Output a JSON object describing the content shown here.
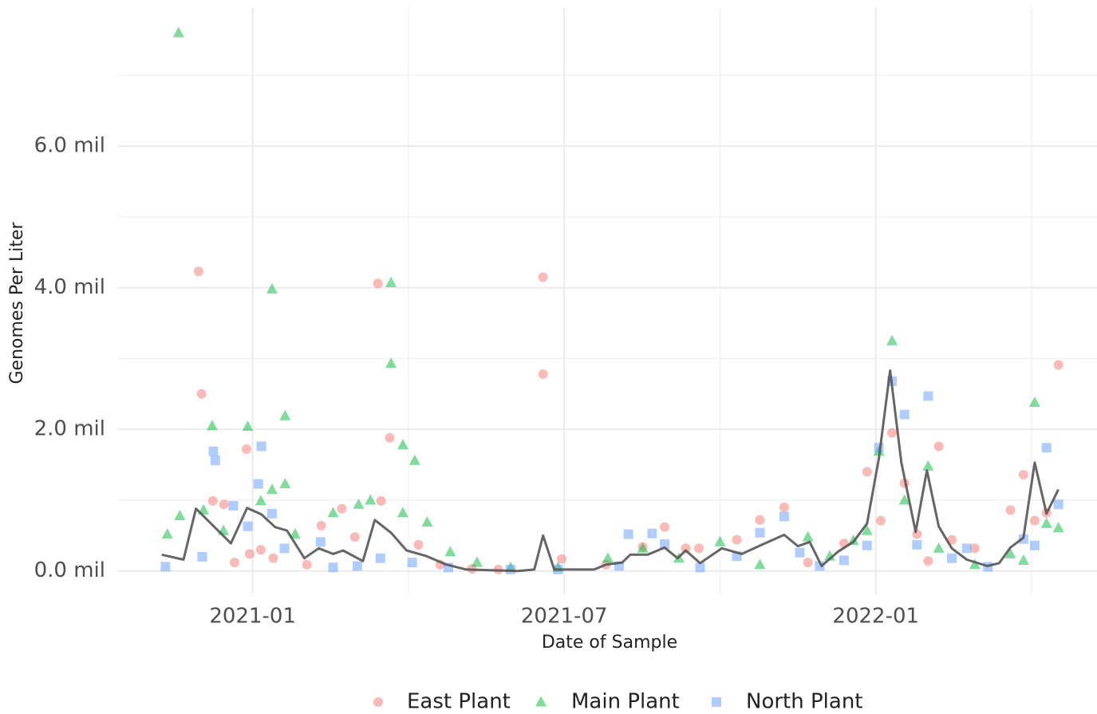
{
  "chart_data": {
    "type": "scatter",
    "x_label": "Date of Sample",
    "y_label": "Genomes Per Liter",
    "xlim": [
      2020.784,
      2022.355
    ],
    "xticks": [
      {
        "value": 2021,
        "label": "2021-01"
      },
      {
        "value": 2021.5,
        "label": "2021-07"
      },
      {
        "value": 2022,
        "label": "2022-01"
      }
    ],
    "x_minor_ticks": [
      2021.25,
      2021.75,
      2022.25
    ],
    "ylim": [
      -330000,
      7950000
    ],
    "yticks": [
      {
        "value": 0,
        "label": "0.0 mil"
      },
      {
        "value": 2000000,
        "label": "2.0 mil"
      },
      {
        "value": 4000000,
        "label": "4.0 mil"
      },
      {
        "value": 6000000,
        "label": "6.0 mil"
      }
    ],
    "y_minor_ticks": [
      1000000,
      3000000,
      5000000,
      7000000
    ],
    "grid": true,
    "legend": "bottom",
    "series": [
      {
        "name": "East Plant",
        "marker": "circle",
        "color": "#f8766d",
        "x": [
          2020.913,
          2020.918,
          2020.936,
          2020.954,
          2020.971,
          2020.99,
          2020.995,
          2021.013,
          2021.033,
          2021.087,
          2021.11,
          2021.143,
          2021.164,
          2021.201,
          2021.206,
          2021.22,
          2021.266,
          2021.301,
          2021.352,
          2021.394,
          2021.466,
          2021.466,
          2021.496,
          2021.567,
          2021.626,
          2021.661,
          2021.695,
          2021.716,
          2021.777,
          2021.814,
          2021.853,
          2021.891,
          2021.949,
          2021.986,
          2022.008,
          2022.026,
          2022.046,
          2022.066,
          2022.084,
          2022.101,
          2022.122,
          2022.159,
          2022.216,
          2022.237,
          2022.255,
          2022.274,
          2022.293
        ],
        "values": [
          4230000,
          2500000,
          990000,
          940000,
          120000,
          1720000,
          240000,
          300000,
          180000,
          90000,
          640000,
          880000,
          480000,
          4060000,
          990000,
          1880000,
          370000,
          90000,
          30000,
          20000,
          4150000,
          2780000,
          170000,
          90000,
          340000,
          620000,
          320000,
          320000,
          440000,
          720000,
          900000,
          120000,
          390000,
          1400000,
          710000,
          1950000,
          1240000,
          520000,
          140000,
          1760000,
          440000,
          320000,
          860000,
          1360000,
          710000,
          820000,
          2910000
        ]
      },
      {
        "name": "Main Plant",
        "marker": "triangle",
        "color": "#00ba38",
        "x": [
          2020.881,
          2020.863,
          2020.883,
          2020.921,
          2020.935,
          2020.953,
          2020.992,
          2021.013,
          2021.031,
          2021.031,
          2021.052,
          2021.052,
          2021.068,
          2021.129,
          2021.17,
          2021.189,
          2021.222,
          2021.222,
          2021.241,
          2021.26,
          2021.241,
          2021.28,
          2021.317,
          2021.36,
          2021.414,
          2021.49,
          2021.57,
          2021.626,
          2021.684,
          2021.75,
          2021.814,
          2021.891,
          2021.926,
          2021.964,
          2021.986,
          2022.005,
          2022.026,
          2022.046,
          2022.084,
          2022.101,
          2022.159,
          2022.216,
          2022.237,
          2022.255,
          2022.274,
          2022.293
        ],
        "values": [
          7600000,
          520000,
          780000,
          860000,
          2050000,
          570000,
          2040000,
          990000,
          3980000,
          1150000,
          2190000,
          1230000,
          520000,
          820000,
          940000,
          1000000,
          4070000,
          2930000,
          1780000,
          1560000,
          820000,
          690000,
          270000,
          120000,
          50000,
          50000,
          180000,
          320000,
          180000,
          410000,
          90000,
          480000,
          210000,
          430000,
          570000,
          1690000,
          3250000,
          1000000,
          1480000,
          320000,
          90000,
          240000,
          150000,
          2380000,
          670000,
          610000
        ]
      },
      {
        "name": "North Plant",
        "marker": "square",
        "color": "#619cff",
        "x": [
          2020.86,
          2020.919,
          2020.937,
          2020.94,
          2020.969,
          2020.992,
          2021.009,
          2021.014,
          2021.031,
          2021.051,
          2021.109,
          2021.129,
          2021.168,
          2021.205,
          2021.256,
          2021.314,
          2021.414,
          2021.49,
          2021.588,
          2021.603,
          2021.641,
          2021.661,
          2021.718,
          2021.777,
          2021.814,
          2021.853,
          2021.878,
          2021.91,
          2021.949,
          2021.986,
          2022.005,
          2022.026,
          2022.046,
          2022.066,
          2022.084,
          2022.122,
          2022.146,
          2022.18,
          2022.237,
          2022.255,
          2022.274,
          2022.293
        ],
        "values": [
          60000,
          200000,
          1690000,
          1560000,
          920000,
          630000,
          1230000,
          1760000,
          810000,
          320000,
          410000,
          50000,
          70000,
          180000,
          120000,
          50000,
          20000,
          20000,
          70000,
          520000,
          530000,
          380000,
          50000,
          210000,
          540000,
          770000,
          260000,
          70000,
          150000,
          360000,
          1740000,
          2680000,
          2210000,
          370000,
          2470000,
          180000,
          320000,
          60000,
          450000,
          360000,
          1740000,
          940000
        ]
      }
    ],
    "line": {
      "color": "#555555",
      "x": [
        2020.854,
        2020.889,
        2020.909,
        2020.933,
        2020.965,
        2020.991,
        2021.014,
        2021.036,
        2021.055,
        2021.083,
        2021.106,
        2021.129,
        2021.145,
        2021.177,
        2021.196,
        2021.222,
        2021.247,
        2021.279,
        2021.311,
        2021.343,
        2021.426,
        2021.452,
        2021.466,
        2021.484,
        2021.516,
        2021.548,
        2021.567,
        2021.593,
        2021.606,
        2021.634,
        2021.661,
        2021.682,
        2021.695,
        2021.718,
        2021.753,
        2021.785,
        2021.817,
        2021.853,
        2021.875,
        2021.894,
        2021.913,
        2021.939,
        2021.964,
        2021.986,
        2022.005,
        2022.023,
        2022.041,
        2022.064,
        2022.082,
        2022.101,
        2022.122,
        2022.146,
        2022.179,
        2022.198,
        2022.216,
        2022.237,
        2022.255,
        2022.274,
        2022.293
      ],
      "values": [
        230000,
        160000,
        880000,
        670000,
        390000,
        890000,
        800000,
        620000,
        570000,
        180000,
        320000,
        240000,
        290000,
        140000,
        720000,
        540000,
        290000,
        210000,
        90000,
        20000,
        0,
        20000,
        500000,
        20000,
        20000,
        20000,
        90000,
        120000,
        230000,
        230000,
        330000,
        180000,
        290000,
        110000,
        320000,
        240000,
        370000,
        510000,
        350000,
        410000,
        70000,
        270000,
        410000,
        670000,
        1590000,
        2830000,
        1530000,
        550000,
        1420000,
        630000,
        320000,
        160000,
        70000,
        110000,
        330000,
        470000,
        1530000,
        810000,
        1150000
      ]
    }
  }
}
